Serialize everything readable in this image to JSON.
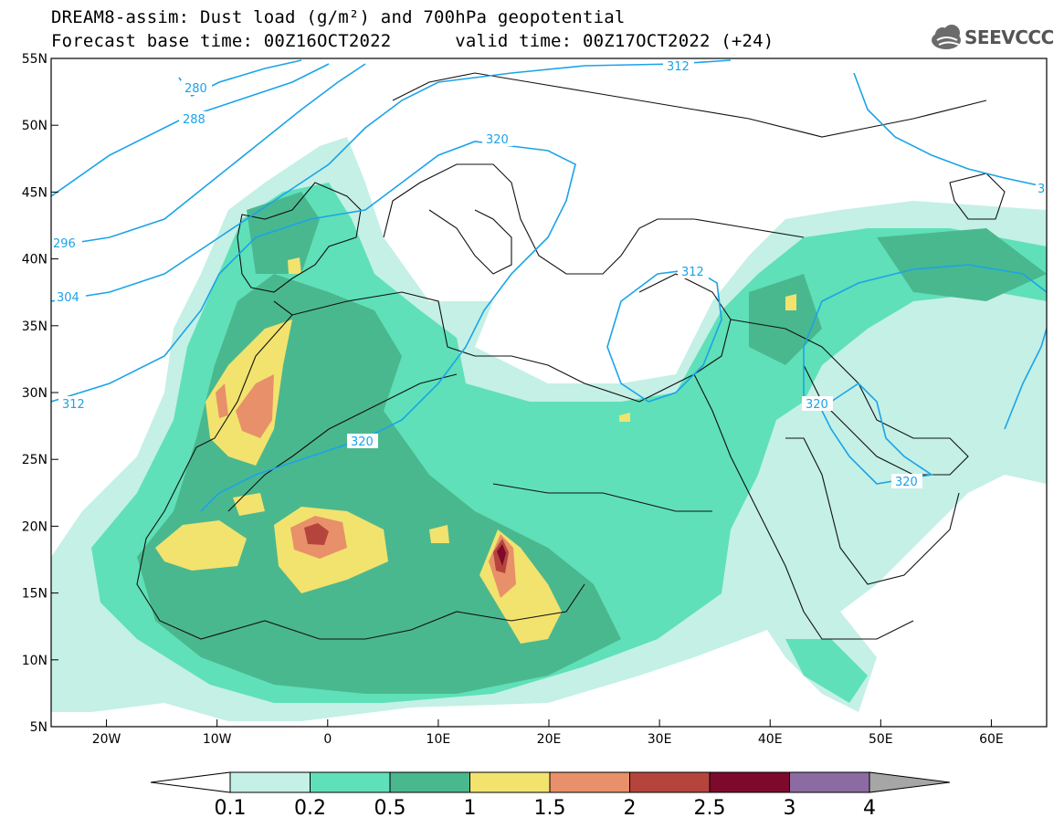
{
  "title": {
    "line1": "DREAM8-assim: Dust load (g/m²) and 700hPa geopotential",
    "line2": "Forecast base time: 00Z16OCT2022      valid time: 00Z17OCT2022 (+24)"
  },
  "logo": {
    "text": "SEEVCCC",
    "icon": "cloud-icon"
  },
  "map": {
    "lon_range": [
      -25,
      65
    ],
    "lat_range": [
      5,
      55
    ],
    "lat_ticks": [
      "55N",
      "50N",
      "45N",
      "40N",
      "35N",
      "30N",
      "25N",
      "20N",
      "15N",
      "10N",
      "5N"
    ],
    "lon_ticks": [
      "20W",
      "10W",
      "0",
      "10E",
      "20E",
      "30E",
      "40E",
      "50E",
      "60E"
    ],
    "contour_color": "#1ba3e8",
    "contour_labels": [
      "280",
      "288",
      "296",
      "304",
      "312",
      "320",
      "320",
      "312",
      "320",
      "320",
      "312",
      "3"
    ]
  },
  "colorbar": {
    "labels": [
      "0.1",
      "0.2",
      "0.5",
      "1",
      "1.5",
      "2",
      "2.5",
      "3",
      "4"
    ],
    "colors": [
      "#c4f0e6",
      "#5fe0b8",
      "#4ab88e",
      "#f2e36e",
      "#e8906a",
      "#b5453c",
      "#7d0a2c",
      "#8c6ba3"
    ],
    "under_color": "#ffffff",
    "over_color": "#a6a6a6"
  }
}
